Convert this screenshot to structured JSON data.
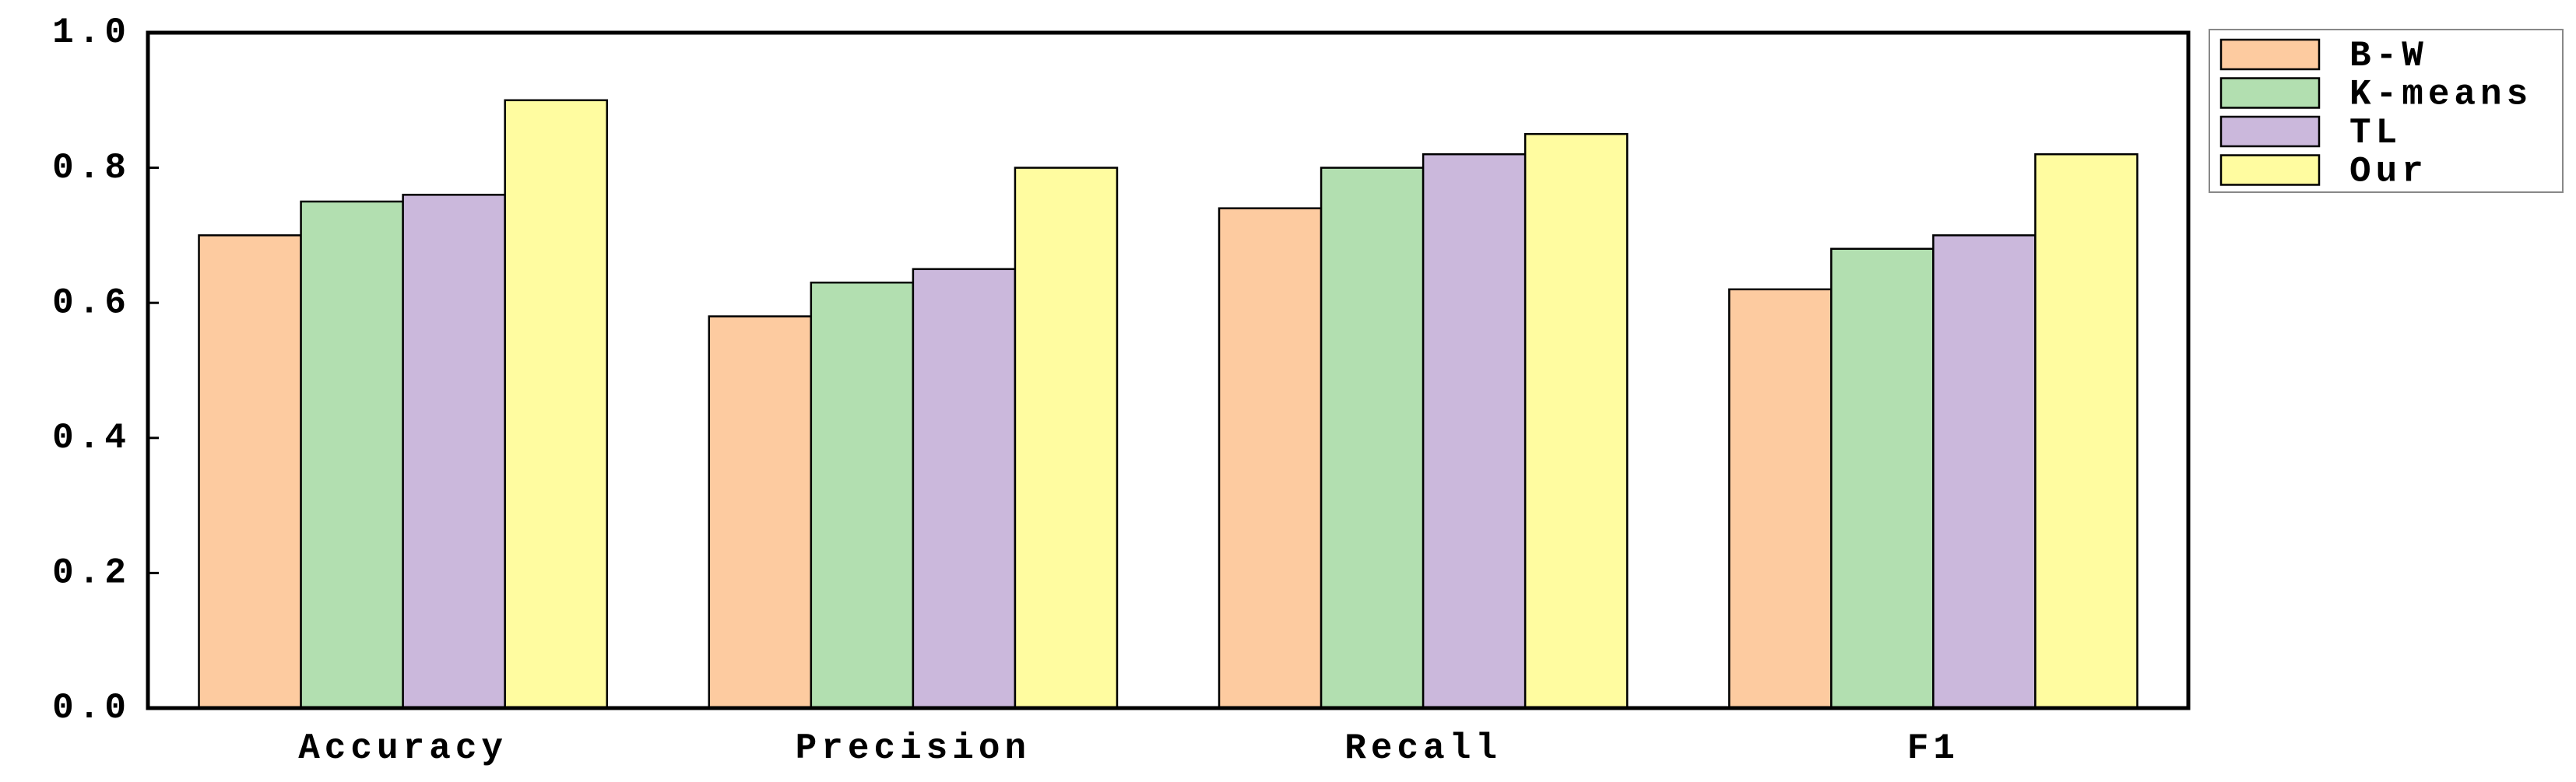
{
  "chart_data": {
    "type": "bar",
    "categories": [
      "Accuracy",
      "Precision",
      "Recall",
      "F1"
    ],
    "series": [
      {
        "name": "B-W",
        "color": "#fdcba0",
        "values": [
          0.7,
          0.58,
          0.74,
          0.62
        ]
      },
      {
        "name": "K-means",
        "color": "#b2dfb0",
        "values": [
          0.75,
          0.63,
          0.8,
          0.68
        ]
      },
      {
        "name": "TL",
        "color": "#cbb8dc",
        "values": [
          0.76,
          0.65,
          0.82,
          0.7
        ]
      },
      {
        "name": "Our",
        "color": "#fffca0",
        "values": [
          0.9,
          0.8,
          0.85,
          0.82
        ]
      }
    ],
    "ylim": [
      0,
      1
    ],
    "yticks": [
      {
        "value": 0,
        "label": "0.0"
      },
      0.2,
      0.4,
      0.6,
      0.8,
      {
        "value": 1,
        "label": "1.0"
      }
    ],
    "legend": "outside-upper-right"
  }
}
